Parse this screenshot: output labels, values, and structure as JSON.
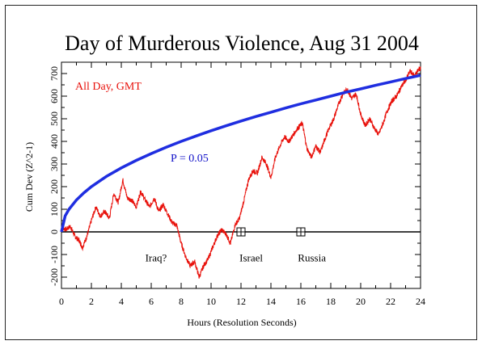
{
  "chart_data": {
    "type": "line",
    "title": "Day of Murderous Violence, Aug 31 2004",
    "subtitle": "All Day, GMT",
    "xlabel": "Hours (Resolution Seconds)",
    "ylabel": "Cum Dev (Z^2-1)",
    "xlim": [
      0,
      24
    ],
    "ylim": [
      -250,
      750
    ],
    "x_ticks": [
      0,
      2,
      4,
      6,
      8,
      10,
      12,
      14,
      16,
      18,
      20,
      22,
      24
    ],
    "x_tick_labels": [
      "0",
      "2",
      "4",
      "6",
      "8",
      "10",
      "12",
      "14",
      "16",
      "18",
      "20",
      "22",
      "24"
    ],
    "y_ticks": [
      -200,
      -100,
      0,
      100,
      200,
      300,
      400,
      500,
      600,
      700
    ],
    "y_tick_labels": [
      "-200",
      "-100",
      "0",
      "100",
      "200",
      "300",
      "400",
      "500",
      "600",
      "700"
    ],
    "grid": false,
    "colors": {
      "data": "#e8120c",
      "significance": "#1f2ee0",
      "baseline": "#000000"
    },
    "series": [
      {
        "x": [
          0,
          0.3,
          0.6,
          0.9,
          1.2,
          1.4,
          1.7,
          2.0,
          2.3,
          2.6,
          2.9,
          3.2,
          3.5,
          3.8,
          4.1,
          4.4,
          4.7,
          5.0,
          5.3,
          5.6,
          5.9,
          6.2,
          6.5,
          6.8,
          7.1,
          7.4,
          7.7,
          8.0,
          8.3,
          8.6,
          8.9,
          9.2,
          9.5,
          9.8,
          10.1,
          10.4,
          10.7,
          11.0,
          11.3,
          11.6,
          11.9,
          12.2,
          12.5,
          12.8,
          13.1,
          13.4,
          13.7,
          14.0,
          14.3,
          14.6,
          14.9,
          15.2,
          15.5,
          15.8,
          16.1,
          16.4,
          16.7,
          17.0,
          17.3,
          17.6,
          17.9,
          18.2,
          18.5,
          18.8,
          19.1,
          19.4,
          19.7,
          20.0,
          20.3,
          20.6,
          20.9,
          21.2,
          21.5,
          21.8,
          22.1,
          22.4,
          22.7,
          23.0,
          23.3,
          23.6,
          23.9,
          24.0
        ],
        "values": [
          20,
          10,
          25,
          -20,
          -40,
          -70,
          -20,
          50,
          110,
          70,
          90,
          60,
          170,
          130,
          230,
          150,
          140,
          110,
          180,
          140,
          110,
          150,
          90,
          120,
          80,
          40,
          30,
          -50,
          -110,
          -150,
          -130,
          -200,
          -150,
          -120,
          -70,
          -20,
          10,
          -10,
          -50,
          30,
          60,
          140,
          230,
          270,
          260,
          330,
          300,
          240,
          330,
          380,
          420,
          400,
          430,
          460,
          480,
          370,
          330,
          380,
          350,
          410,
          460,
          500,
          560,
          610,
          630,
          590,
          610,
          520,
          470,
          500,
          460,
          430,
          480,
          540,
          580,
          600,
          640,
          670,
          710,
          690,
          720,
          720
        ]
      },
      {
        "x": [
          0,
          0.25,
          0.5,
          1,
          1.5,
          2,
          3,
          4,
          5,
          6,
          7,
          8,
          9,
          10,
          11,
          12,
          13,
          14,
          15,
          16,
          17,
          18,
          19,
          20,
          21,
          22,
          23,
          24
        ],
        "values": [
          0,
          71,
          100,
          141,
          173,
          200,
          245,
          283,
          316,
          346,
          374,
          400,
          424,
          447,
          469,
          490,
          510,
          529,
          548,
          566,
          583,
          600,
          617,
          632,
          648,
          663,
          678,
          692
        ]
      }
    ],
    "annotations": [
      {
        "text": "All Day, GMT"
      },
      {
        "text": "P = 0.05"
      },
      {
        "text": "Iraq?"
      },
      {
        "text": "Israel"
      },
      {
        "text": "Russia"
      }
    ],
    "event_markers": [
      {
        "x": 12,
        "y": 0,
        "label": "Israel"
      },
      {
        "x": 16,
        "y": 0,
        "label": "Russia"
      }
    ]
  }
}
